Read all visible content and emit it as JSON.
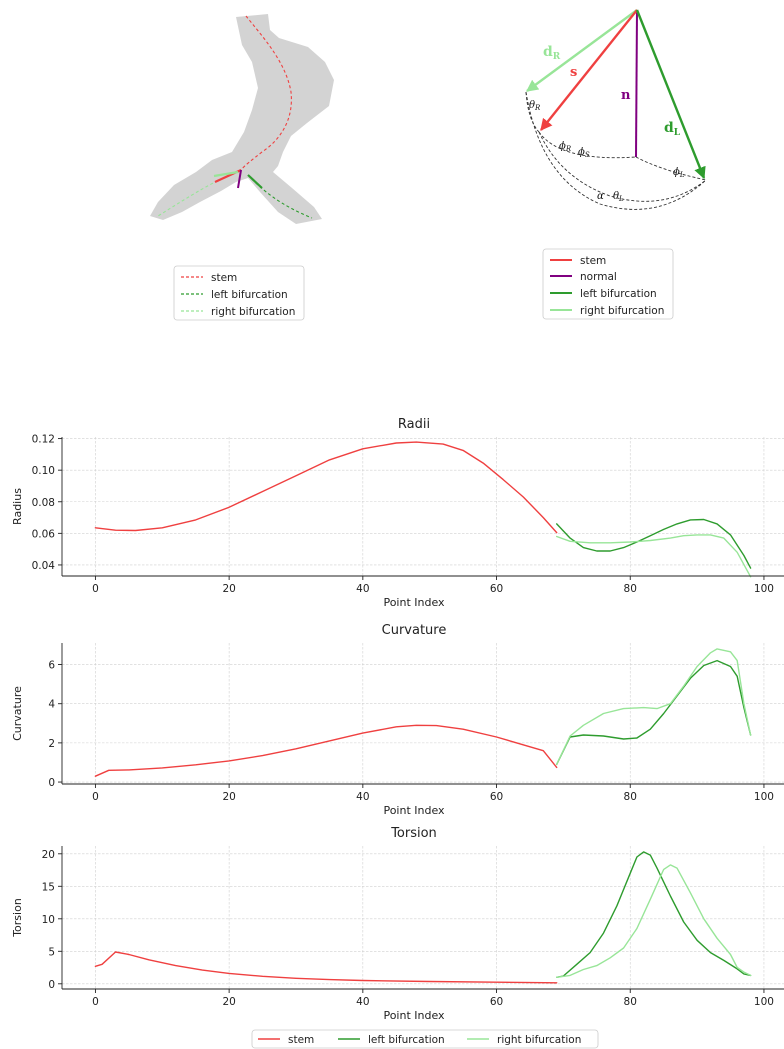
{
  "colors": {
    "stem": "#ef4040",
    "left": "#2e9c2e",
    "right": "#98e598",
    "normal": "#800080",
    "vessel": "#d3d3d3"
  },
  "schematic_vessel": {
    "legend": [
      "stem",
      "left bifurcation",
      "right bifurcation"
    ]
  },
  "schematic_vectors": {
    "vector_labels": {
      "dR": "d",
      "dR_sub": "R",
      "s": "s",
      "n": "n",
      "dL": "d",
      "dL_sub": "L"
    },
    "angle_labels": {
      "theta_R": "θ",
      "theta_R_sub": "R",
      "phi_R": "ϕ",
      "phi_R_sub": "R",
      "phi_S": "ϕ",
      "phi_S_sub": "S",
      "phi_L": "ϕ",
      "phi_L_sub": "L",
      "alpha": "α",
      "theta_L": "θ",
      "theta_L_sub": "L"
    },
    "legend": [
      "stem",
      "normal",
      "left bifurcation",
      "right bifurcation"
    ]
  },
  "bottom_legend": [
    "stem",
    "left bifurcation",
    "right bifurcation"
  ],
  "chart_data": [
    {
      "type": "line",
      "title": "Radii",
      "xlabel": "Point Index",
      "ylabel": "Radius",
      "xlim": [
        -5,
        103
      ],
      "ylim": [
        0.033,
        0.121
      ],
      "xticks": [
        0,
        20,
        40,
        60,
        80,
        100
      ],
      "yticks": [
        0.04,
        0.06,
        0.08,
        0.1,
        0.12
      ],
      "ytick_labels": [
        "0.04",
        "0.06",
        "0.08",
        "0.10",
        "0.12"
      ],
      "grid": true,
      "series": [
        {
          "name": "stem",
          "color": "stem",
          "x": [
            0,
            3,
            6,
            10,
            15,
            20,
            25,
            30,
            35,
            40,
            45,
            48,
            52,
            55,
            58,
            61,
            64,
            67,
            69
          ],
          "y": [
            0.0635,
            0.062,
            0.0618,
            0.0635,
            0.0685,
            0.0765,
            0.0865,
            0.0965,
            0.1065,
            0.1135,
            0.1172,
            0.1178,
            0.1165,
            0.1125,
            0.1045,
            0.094,
            0.083,
            0.07,
            0.0605
          ]
        },
        {
          "name": "left bifurcation",
          "color": "left",
          "x": [
            69,
            71,
            73,
            75,
            77,
            79,
            81,
            83,
            85,
            87,
            89,
            91,
            93,
            95,
            97,
            98
          ],
          "y": [
            0.066,
            0.057,
            0.051,
            0.0488,
            0.0488,
            0.051,
            0.0545,
            0.0585,
            0.0625,
            0.066,
            0.0685,
            0.0688,
            0.066,
            0.059,
            0.046,
            0.038
          ]
        },
        {
          "name": "right bifurcation",
          "color": "right",
          "x": [
            69,
            71,
            74,
            77,
            80,
            83,
            86,
            88,
            90,
            92,
            94,
            96,
            98
          ],
          "y": [
            0.058,
            0.055,
            0.054,
            0.054,
            0.0545,
            0.0555,
            0.057,
            0.0585,
            0.059,
            0.059,
            0.057,
            0.048,
            0.0325
          ]
        }
      ]
    },
    {
      "type": "line",
      "title": "Curvature",
      "xlabel": "Point Index",
      "ylabel": "Curvature",
      "xlim": [
        -5,
        103
      ],
      "ylim": [
        -0.1,
        7.1
      ],
      "xticks": [
        0,
        20,
        40,
        60,
        80,
        100
      ],
      "yticks": [
        0,
        2,
        4,
        6
      ],
      "ytick_labels": [
        "0",
        "2",
        "4",
        "6"
      ],
      "grid": true,
      "series": [
        {
          "name": "stem",
          "color": "stem",
          "x": [
            0,
            2,
            5,
            10,
            15,
            20,
            25,
            30,
            35,
            40,
            45,
            48,
            51,
            55,
            60,
            65,
            67,
            69
          ],
          "y": [
            0.3,
            0.6,
            0.62,
            0.72,
            0.88,
            1.08,
            1.35,
            1.7,
            2.1,
            2.5,
            2.82,
            2.9,
            2.88,
            2.7,
            2.3,
            1.8,
            1.6,
            0.75
          ]
        },
        {
          "name": "left bifurcation",
          "color": "left",
          "x": [
            69,
            71,
            73,
            76,
            79,
            81,
            83,
            85,
            87,
            89,
            91,
            93,
            95,
            96,
            97,
            98
          ],
          "y": [
            0.9,
            2.3,
            2.4,
            2.35,
            2.2,
            2.25,
            2.7,
            3.5,
            4.4,
            5.3,
            5.95,
            6.2,
            5.9,
            5.4,
            3.8,
            2.4
          ]
        },
        {
          "name": "right bifurcation",
          "color": "right",
          "x": [
            69,
            71,
            73,
            76,
            79,
            82,
            84,
            86,
            88,
            90,
            92,
            93,
            95,
            96,
            97,
            98
          ],
          "y": [
            0.9,
            2.35,
            2.9,
            3.5,
            3.75,
            3.8,
            3.75,
            4.0,
            4.9,
            5.9,
            6.6,
            6.8,
            6.65,
            6.2,
            4.0,
            2.4
          ]
        }
      ]
    },
    {
      "type": "line",
      "title": "Torsion",
      "xlabel": "Point Index",
      "ylabel": "Torsion",
      "xlim": [
        -5,
        103
      ],
      "ylim": [
        -0.8,
        21.2
      ],
      "xticks": [
        0,
        20,
        40,
        60,
        80,
        100
      ],
      "yticks": [
        0,
        5,
        10,
        15,
        20
      ],
      "ytick_labels": [
        "0",
        "5",
        "10",
        "15",
        "20"
      ],
      "grid": true,
      "series": [
        {
          "name": "stem",
          "color": "stem",
          "x": [
            0,
            1,
            3,
            5,
            8,
            12,
            16,
            20,
            25,
            30,
            35,
            40,
            50,
            60,
            69
          ],
          "y": [
            2.7,
            3.0,
            4.9,
            4.5,
            3.7,
            2.8,
            2.1,
            1.6,
            1.15,
            0.85,
            0.65,
            0.5,
            0.35,
            0.25,
            0.15
          ]
        },
        {
          "name": "left bifurcation",
          "color": "left",
          "x": [
            69,
            70,
            72,
            74,
            76,
            78,
            80,
            81,
            82,
            83,
            84,
            86,
            88,
            90,
            92,
            94,
            96,
            97,
            98
          ],
          "y": [
            1.0,
            1.2,
            3.0,
            4.8,
            7.8,
            12.0,
            17.0,
            19.5,
            20.3,
            19.8,
            17.8,
            13.5,
            9.5,
            6.7,
            4.8,
            3.6,
            2.3,
            1.5,
            1.3
          ]
        },
        {
          "name": "right bifurcation",
          "color": "right",
          "x": [
            69,
            71,
            73,
            75,
            77,
            79,
            81,
            83,
            85,
            86,
            87,
            89,
            91,
            93,
            95,
            96,
            97,
            98
          ],
          "y": [
            1.0,
            1.3,
            2.2,
            2.8,
            4.0,
            5.5,
            8.5,
            13.0,
            17.6,
            18.3,
            17.8,
            14.0,
            10.0,
            7.0,
            4.5,
            2.5,
            1.8,
            1.3
          ]
        }
      ]
    }
  ]
}
